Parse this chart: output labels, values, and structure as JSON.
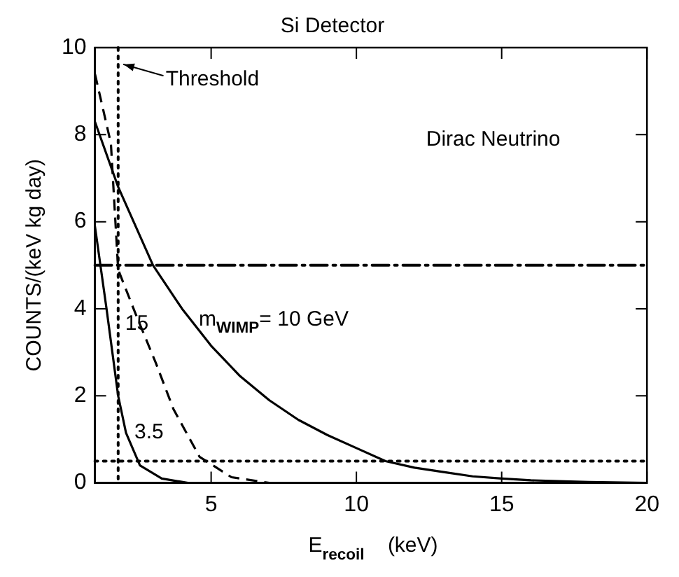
{
  "chart_data": {
    "type": "line",
    "title": "Si Detector",
    "xlabel": "E$_{recoil}$    (keV)",
    "ylabel": "COUNTS/(keV kg day)",
    "xlim": [
      1,
      20
    ],
    "xticks": [
      5,
      10,
      15,
      20
    ],
    "ylim": [
      0,
      10
    ],
    "yticks": [
      0,
      2,
      4,
      6,
      8,
      10
    ],
    "grid": false,
    "legend": false,
    "marker": "none",
    "series": [
      {
        "name": "m$_{WIMP}$= 10 GeV",
        "color": "#000000",
        "line_style": "solid",
        "x": [
          1,
          1.8,
          2,
          3,
          4,
          5,
          6,
          7,
          8,
          9,
          10,
          11,
          12,
          13,
          14,
          15,
          16,
          18,
          20
        ],
        "values": [
          8.3,
          6.8,
          6.5,
          5.0,
          4.0,
          3.15,
          2.45,
          1.9,
          1.45,
          1.1,
          0.8,
          0.5,
          0.35,
          0.25,
          0.15,
          0.1,
          0.06,
          0.02,
          0
        ]
      },
      {
        "name": "15",
        "color": "#000000",
        "line_style": "dashed",
        "x": [
          1,
          1.55,
          1.8,
          2.45,
          3.1,
          3.7,
          4.6,
          5.7,
          7
        ],
        "values": [
          9.4,
          7.8,
          4.9,
          3.8,
          2.75,
          1.7,
          0.6,
          0.13,
          0
        ]
      },
      {
        "name": "3.5",
        "color": "#000000",
        "line_style": "solid",
        "x": [
          1,
          1.4,
          1.8,
          2.07,
          2.55,
          3.3,
          4.2
        ],
        "values": [
          5.9,
          4.0,
          2.0,
          1.15,
          0.4,
          0.1,
          0
        ]
      }
    ],
    "ref_lines": [
      {
        "axis": "x",
        "value": 1.8,
        "label": "Threshold",
        "line_style": "dotted",
        "color": "#000000"
      },
      {
        "axis": "y",
        "value": 5,
        "line_style": "dashdot",
        "color": "#000000"
      },
      {
        "axis": "y",
        "value": 0.5,
        "line_style": "dotted",
        "color": "#000000"
      }
    ],
    "annotations": [
      "Dirac Neutrino"
    ]
  }
}
